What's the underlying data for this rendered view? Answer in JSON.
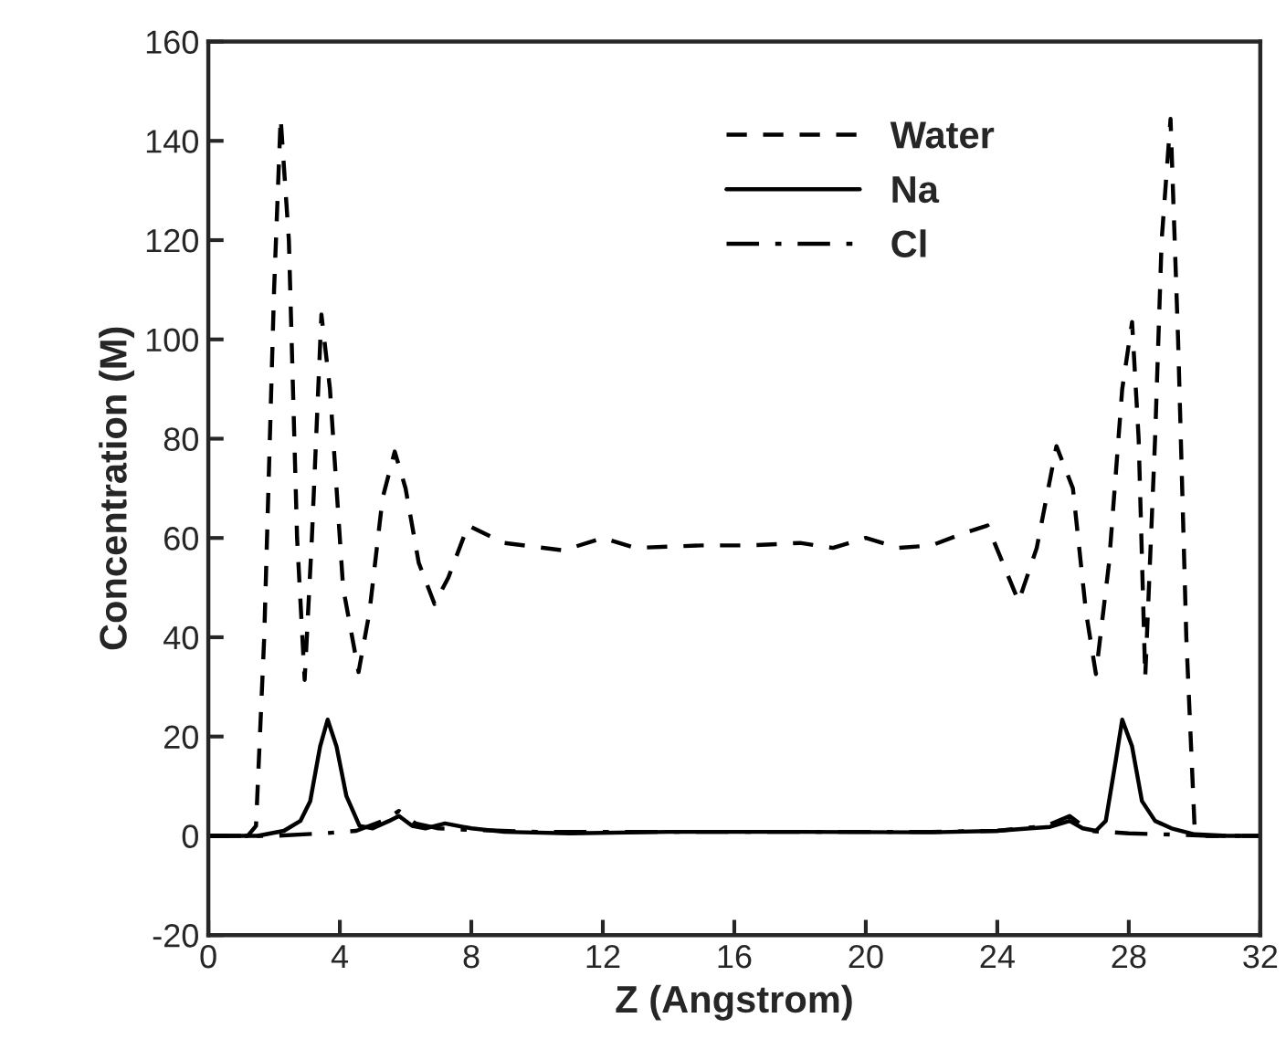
{
  "chart_data": {
    "type": "line",
    "xlabel": "Z (Angstrom)",
    "ylabel": "Concentration (M)",
    "xlim": [
      0,
      32
    ],
    "xticks": [
      0,
      4,
      8,
      12,
      16,
      20,
      24,
      28,
      32
    ],
    "ylim": [
      -20,
      160
    ],
    "yticks": [
      -20,
      0,
      20,
      40,
      60,
      80,
      100,
      120,
      140,
      160
    ],
    "grid": false,
    "legend": "top",
    "marker": "none",
    "series": [
      {
        "name": "Water",
        "color": "#000000",
        "line_style": "dashed",
        "x": [
          0,
          1.2,
          1.45,
          1.7,
          2.0,
          2.2,
          2.45,
          2.7,
          2.93,
          3.15,
          3.44,
          3.7,
          4.1,
          4.57,
          4.9,
          5.3,
          5.67,
          6.0,
          6.4,
          6.88,
          7.3,
          7.9,
          9.0,
          10.8,
          12.0,
          13.0,
          15.0,
          16.5,
          18.0,
          19.0,
          20.0,
          21.0,
          22.0,
          23.0,
          23.7,
          24.65,
          25.2,
          25.8,
          26.3,
          26.7,
          27.0,
          27.4,
          27.8,
          28.1,
          28.3,
          28.5,
          28.8,
          29.0,
          29.27,
          29.5,
          29.75,
          30.0,
          30.3,
          32
        ],
        "values": [
          0,
          0,
          2,
          40,
          110,
          144.6,
          120,
          60,
          31.4,
          60,
          105,
          90,
          50,
          33,
          45,
          68,
          77.4,
          70,
          55,
          46.7,
          52,
          62.5,
          59,
          57.5,
          60,
          58,
          58.5,
          58.5,
          59,
          58,
          60,
          58,
          58.5,
          61,
          62.5,
          47.2,
          58,
          78.5,
          70,
          45,
          32.6,
          55,
          90,
          103.5,
          80,
          32,
          80,
          120,
          144.4,
          100,
          40,
          2,
          0,
          0
        ]
      },
      {
        "name": "Na",
        "color": "#000000",
        "line_style": "solid",
        "x": [
          0,
          1.5,
          2.3,
          2.8,
          3.1,
          3.4,
          3.63,
          3.9,
          4.2,
          4.6,
          5.0,
          5.5,
          5.8,
          6.2,
          6.6,
          7.2,
          8.0,
          9.0,
          11.0,
          14.0,
          18.0,
          22.0,
          24.0,
          25.0,
          25.6,
          26.2,
          26.6,
          27.0,
          27.3,
          27.6,
          27.8,
          28.1,
          28.4,
          28.8,
          29.3,
          30.0,
          31.0,
          32
        ],
        "values": [
          0,
          0,
          1,
          3,
          7,
          18,
          23.4,
          18,
          8,
          2,
          1.5,
          3,
          4,
          2,
          1.5,
          2.5,
          1.5,
          0.8,
          0.5,
          0.8,
          0.8,
          0.7,
          1.0,
          1.5,
          1.8,
          3,
          1.5,
          1,
          3,
          15,
          23.4,
          18,
          7,
          3,
          1.5,
          0.3,
          0,
          0
        ]
      },
      {
        "name": "Cl",
        "color": "#000000",
        "line_style": "dashdot",
        "x": [
          0,
          2.0,
          3.5,
          4.5,
          5.3,
          5.8,
          6.3,
          7.0,
          8.0,
          10.0,
          14.0,
          18.0,
          22.0,
          24.0,
          25.5,
          26.2,
          26.8,
          28.0,
          29.5,
          30.5,
          32
        ],
        "values": [
          0,
          0,
          0.5,
          1.0,
          3,
          5,
          2.5,
          1.5,
          1.2,
          0.8,
          0.8,
          0.8,
          0.8,
          1.0,
          2,
          4,
          1.0,
          0.5,
          0.2,
          0,
          0
        ]
      }
    ]
  }
}
